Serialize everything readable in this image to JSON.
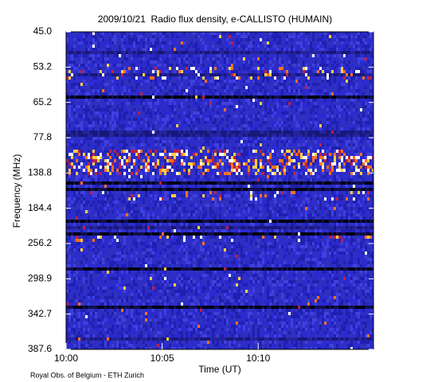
{
  "chart_data": {
    "type": "heatmap",
    "title": "2009/10/21  Radio flux density, e-CALLISTO (HUMAIN)",
    "xlabel": "Time (UT)",
    "ylabel": "Frequency (MHz)",
    "xlim": [
      600,
      616
    ],
    "xticks": [
      {
        "value": 600,
        "label": "10:00"
      },
      {
        "value": 605,
        "label": "10:05"
      },
      {
        "value": 610,
        "label": "10:10"
      }
    ],
    "yticks": [
      {
        "value": 45,
        "label": "45.0"
      },
      53.2,
      65.2,
      77.8,
      138.8,
      184.4,
      256.2,
      298.9,
      342.7,
      387.6
    ],
    "credit": "Royal Obs. of Belgium - ETH Zurich"
  }
}
